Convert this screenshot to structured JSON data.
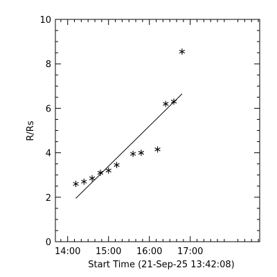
{
  "chart_data": {
    "type": "scatter",
    "title": "",
    "xlabel": "Start Time (21-Sep-25 13:42:08)",
    "ylabel": "R/Rs",
    "xlim": [
      "13:42",
      "18:42"
    ],
    "ylim": [
      0,
      10
    ],
    "x_ticks": [
      {
        "value": "14:00",
        "label": "14:00"
      },
      {
        "value": "15:00",
        "label": "15:00"
      },
      {
        "value": "16:00",
        "label": "16:00"
      },
      {
        "value": "17:00",
        "label": "17:00"
      }
    ],
    "y_ticks": [
      0,
      2,
      4,
      6,
      8,
      10
    ],
    "marker": "asterisk",
    "grid": false,
    "series": [
      {
        "points": [
          {
            "x": "14:12",
            "y": 2.6
          },
          {
            "x": "14:24",
            "y": 2.7
          },
          {
            "x": "14:36",
            "y": 2.85
          },
          {
            "x": "14:48",
            "y": 3.1
          },
          {
            "x": "15:00",
            "y": 3.2
          },
          {
            "x": "15:12",
            "y": 3.45
          },
          {
            "x": "15:36",
            "y": 3.95
          },
          {
            "x": "15:48",
            "y": 4.0
          },
          {
            "x": "16:12",
            "y": 4.15
          },
          {
            "x": "16:24",
            "y": 6.2
          },
          {
            "x": "16:36",
            "y": 6.3
          },
          {
            "x": "16:48",
            "y": 8.55
          }
        ]
      }
    ],
    "fit_line": {
      "x0": "14:12",
      "y0": 1.95,
      "x1": "16:48",
      "y1": 6.65
    }
  }
}
